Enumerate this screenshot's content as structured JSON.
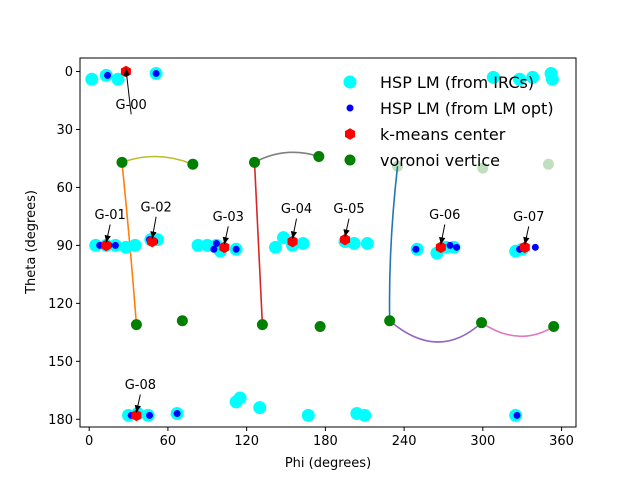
{
  "chart_data": {
    "type": "scatter",
    "title": "",
    "xlabel": "Phi (degrees)",
    "ylabel": "Theta (degrees)",
    "xlim": [
      -7,
      371
    ],
    "ylim": [
      184,
      -7
    ],
    "y_inverted": true,
    "xticks": [
      0,
      60,
      120,
      180,
      240,
      300,
      360
    ],
    "yticks": [
      0,
      30,
      60,
      90,
      120,
      150,
      180
    ],
    "grid": false,
    "legend_placement": "top-right",
    "series": [
      {
        "name": "HSP LM (from IRCs)",
        "marker": "circle-large",
        "color": "#00ffff",
        "points": [
          [
            2,
            4
          ],
          [
            13,
            2
          ],
          [
            22,
            4
          ],
          [
            51,
            1
          ],
          [
            308,
            3
          ],
          [
            328,
            4
          ],
          [
            338,
            3
          ],
          [
            352,
            1
          ],
          [
            353,
            4
          ],
          [
            5,
            90
          ],
          [
            13,
            90
          ],
          [
            20,
            90
          ],
          [
            28,
            91
          ],
          [
            35,
            90
          ],
          [
            47,
            87
          ],
          [
            52,
            87
          ],
          [
            83,
            90
          ],
          [
            90,
            90
          ],
          [
            97,
            90
          ],
          [
            100,
            93
          ],
          [
            112,
            92
          ],
          [
            142,
            91
          ],
          [
            148,
            86
          ],
          [
            155,
            90
          ],
          [
            163,
            89
          ],
          [
            195,
            88
          ],
          [
            202,
            89
          ],
          [
            212,
            89
          ],
          [
            250,
            92
          ],
          [
            265,
            94
          ],
          [
            272,
            91
          ],
          [
            278,
            91
          ],
          [
            325,
            93
          ],
          [
            330,
            92
          ],
          [
            30,
            178
          ],
          [
            37,
            177
          ],
          [
            45,
            178
          ],
          [
            67,
            177
          ],
          [
            112,
            171
          ],
          [
            115,
            169
          ],
          [
            130,
            174
          ],
          [
            167,
            178
          ],
          [
            204,
            177
          ],
          [
            210,
            178
          ],
          [
            325,
            178
          ]
        ]
      },
      {
        "name": "HSP LM (from LM opt)",
        "marker": "circle-small",
        "color": "#0000ff",
        "points": [
          [
            14,
            2
          ],
          [
            51,
            1
          ],
          [
            8,
            90
          ],
          [
            15,
            90
          ],
          [
            20,
            90
          ],
          [
            46,
            87
          ],
          [
            50,
            88
          ],
          [
            95,
            92
          ],
          [
            97,
            89
          ],
          [
            112,
            92
          ],
          [
            155,
            87
          ],
          [
            194,
            87
          ],
          [
            249,
            92
          ],
          [
            267,
            91
          ],
          [
            275,
            90
          ],
          [
            280,
            91
          ],
          [
            328,
            92
          ],
          [
            340,
            91
          ],
          [
            32,
            178
          ],
          [
            46,
            178
          ],
          [
            67,
            177
          ],
          [
            326,
            178
          ]
        ]
      },
      {
        "name": "k-means center",
        "marker": "hexagon",
        "color": "#ff0000",
        "points": [
          [
            28,
            0
          ],
          [
            13,
            90
          ],
          [
            48,
            88
          ],
          [
            103,
            91
          ],
          [
            155,
            88
          ],
          [
            195,
            87
          ],
          [
            268,
            91
          ],
          [
            332,
            91
          ],
          [
            36,
            178
          ]
        ]
      },
      {
        "name": "voronoi vertice",
        "marker": "circle-medium",
        "color": "#008000",
        "faded_points": [
          [
            235,
            49
          ],
          [
            300,
            50
          ],
          [
            350,
            48
          ]
        ],
        "points": [
          [
            25,
            47
          ],
          [
            79,
            48
          ],
          [
            126,
            47
          ],
          [
            175,
            44
          ],
          [
            36,
            131
          ],
          [
            71,
            129
          ],
          [
            132,
            131
          ],
          [
            176,
            132
          ],
          [
            229,
            129
          ],
          [
            299,
            130
          ],
          [
            354,
            132
          ]
        ]
      }
    ],
    "curves": [
      {
        "color": "#bcbd22",
        "points": [
          [
            25,
            47
          ],
          [
            52,
            44
          ],
          [
            79,
            48
          ]
        ]
      },
      {
        "color": "#7f7f7f",
        "points": [
          [
            126,
            47
          ],
          [
            150,
            42
          ],
          [
            175,
            44
          ]
        ]
      },
      {
        "color": "#ff7f0e",
        "points": [
          [
            25,
            47
          ],
          [
            31,
            90
          ],
          [
            36,
            131
          ]
        ]
      },
      {
        "color": "#d62728",
        "points": [
          [
            126,
            47
          ],
          [
            129,
            90
          ],
          [
            132,
            131
          ]
        ]
      },
      {
        "color": "#1f77b4",
        "points": [
          [
            235,
            49
          ],
          [
            230,
            90
          ],
          [
            229,
            129
          ]
        ]
      },
      {
        "color": "#9467bd",
        "points": [
          [
            229,
            129
          ],
          [
            265,
            140
          ],
          [
            299,
            130
          ]
        ]
      },
      {
        "color": "#e377c2",
        "points": [
          [
            299,
            130
          ],
          [
            327,
            137
          ],
          [
            354,
            132
          ]
        ]
      }
    ],
    "annotations": [
      {
        "text": "G-00",
        "target": [
          28,
          0
        ],
        "text_pos": [
          32,
          17
        ]
      },
      {
        "text": "G-01",
        "target": [
          13,
          90
        ],
        "text_pos": [
          16,
          74
        ]
      },
      {
        "text": "G-02",
        "target": [
          48,
          88
        ],
        "text_pos": [
          51,
          70
        ]
      },
      {
        "text": "G-03",
        "target": [
          103,
          91
        ],
        "text_pos": [
          106,
          75
        ]
      },
      {
        "text": "G-04",
        "target": [
          155,
          88
        ],
        "text_pos": [
          158,
          71
        ]
      },
      {
        "text": "G-05",
        "target": [
          195,
          87
        ],
        "text_pos": [
          198,
          71
        ]
      },
      {
        "text": "G-06",
        "target": [
          268,
          91
        ],
        "text_pos": [
          271,
          74
        ]
      },
      {
        "text": "G-07",
        "target": [
          332,
          91
        ],
        "text_pos": [
          335,
          75
        ]
      },
      {
        "text": "G-08",
        "target": [
          36,
          178
        ],
        "text_pos": [
          39,
          162
        ]
      }
    ]
  }
}
